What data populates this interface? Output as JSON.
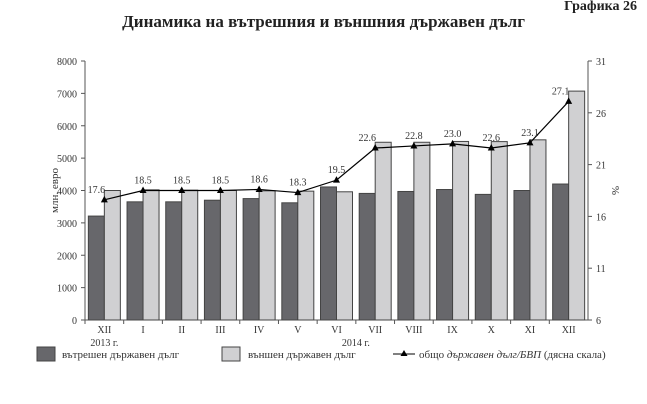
{
  "caption": "Графика 26",
  "chart_data": {
    "type": "bar",
    "title": "Динамика на вътрешния и външния държавен дълг",
    "categories": [
      "XII",
      "I",
      "II",
      "III",
      "IV",
      "V",
      "VI",
      "VII",
      "VIII",
      "IX",
      "X",
      "XI",
      "XII"
    ],
    "year_labels": [
      {
        "label": "2013 г.",
        "index": 0
      },
      {
        "label": "2014 г.",
        "index": 6.5
      }
    ],
    "ylabel": "млн. евро",
    "ylim": [
      0,
      8000
    ],
    "yticks": [
      0,
      1000,
      2000,
      3000,
      4000,
      5000,
      6000,
      7000,
      8000
    ],
    "y2label": "%",
    "y2lim": [
      6,
      31
    ],
    "y2ticks": [
      6,
      11,
      16,
      21,
      26,
      31
    ],
    "grid": false,
    "legend": "bottom",
    "series": [
      {
        "name": "вътрешен държавен дълг",
        "type": "bar",
        "color": "#67676b",
        "values": [
          3210,
          3650,
          3650,
          3700,
          3750,
          3620,
          4110,
          3910,
          3970,
          4030,
          3880,
          4000,
          4200
        ]
      },
      {
        "name": "външен държавен дълг",
        "type": "bar",
        "color": "#d0d0d2",
        "values": [
          4000,
          4020,
          4010,
          4000,
          3990,
          3980,
          3960,
          5490,
          5490,
          5515,
          5510,
          5565,
          7070
        ]
      },
      {
        "name_prefix": "общо ",
        "name_italic": "държавен дълг/БВП",
        "name_suffix": " (дясна скала)",
        "type": "line",
        "axis": "right",
        "color": "#000000",
        "values": [
          17.6,
          18.5,
          18.5,
          18.5,
          18.6,
          18.3,
          19.5,
          22.6,
          22.8,
          23.0,
          22.6,
          23.1,
          27.1
        ],
        "labels": [
          "17.6",
          "18.5",
          "18.5",
          "18.5",
          "18.6",
          "18.3",
          "19.5",
          "22.6",
          "22.8",
          "23.0",
          "22.6",
          "23.1",
          "27.1"
        ]
      }
    ]
  }
}
